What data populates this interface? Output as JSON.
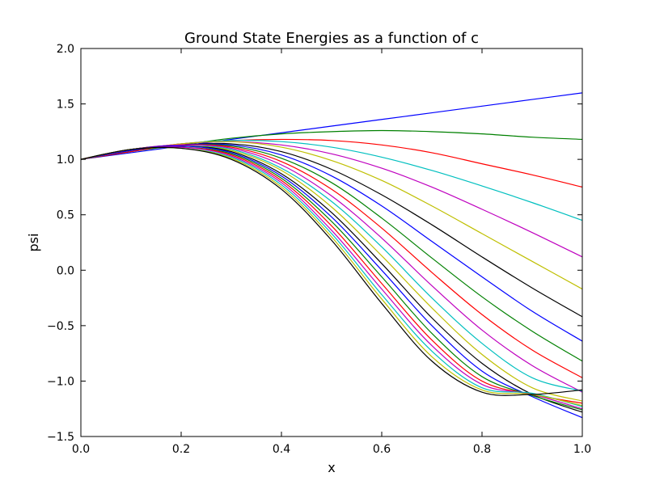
{
  "chart_data": {
    "type": "line",
    "title": "Ground State Energies as a function of c",
    "xlabel": "x",
    "ylabel": "psi",
    "xlim": [
      0.0,
      1.0
    ],
    "ylim": [
      -1.5,
      2.0
    ],
    "grid": false,
    "legend": "none",
    "x_ticks": [
      "0.0",
      "0.2",
      "0.4",
      "0.6",
      "0.8",
      "1.0"
    ],
    "y_ticks": [
      "−1.5",
      "−1.0",
      "−0.5",
      "0.0",
      "0.5",
      "1.0",
      "1.5",
      "2.0"
    ],
    "x": [
      0.0,
      0.1,
      0.2,
      0.3,
      0.4,
      0.5,
      0.6,
      0.7,
      0.8,
      0.9,
      1.0
    ],
    "series": [
      {
        "color": "#0000ff",
        "values": [
          1.0,
          1.06,
          1.12,
          1.18,
          1.24,
          1.3,
          1.36,
          1.42,
          1.48,
          1.54,
          1.6
        ]
      },
      {
        "color": "#008000",
        "values": [
          1.0,
          1.07,
          1.13,
          1.19,
          1.23,
          1.25,
          1.26,
          1.25,
          1.23,
          1.2,
          1.18
        ]
      },
      {
        "color": "#ff0000",
        "values": [
          1.0,
          1.07,
          1.14,
          1.17,
          1.18,
          1.17,
          1.13,
          1.06,
          0.96,
          0.86,
          0.75
        ]
      },
      {
        "color": "#00bfbf",
        "values": [
          1.0,
          1.08,
          1.14,
          1.17,
          1.16,
          1.11,
          1.02,
          0.9,
          0.76,
          0.61,
          0.45
        ]
      },
      {
        "color": "#bf00bf",
        "values": [
          1.0,
          1.08,
          1.14,
          1.16,
          1.13,
          1.05,
          0.92,
          0.75,
          0.55,
          0.34,
          0.12
        ]
      },
      {
        "color": "#bfbf00",
        "values": [
          1.0,
          1.08,
          1.14,
          1.16,
          1.11,
          0.99,
          0.81,
          0.58,
          0.33,
          0.08,
          -0.17
        ]
      },
      {
        "color": "#000000",
        "values": [
          1.0,
          1.08,
          1.13,
          1.14,
          1.07,
          0.91,
          0.68,
          0.41,
          0.12,
          -0.16,
          -0.42
        ]
      },
      {
        "color": "#0000ff",
        "values": [
          1.0,
          1.08,
          1.13,
          1.13,
          1.04,
          0.85,
          0.58,
          0.26,
          -0.06,
          -0.37,
          -0.64
        ]
      },
      {
        "color": "#008000",
        "values": [
          1.0,
          1.09,
          1.13,
          1.12,
          1.01,
          0.79,
          0.47,
          0.11,
          -0.24,
          -0.55,
          -0.82
        ]
      },
      {
        "color": "#ff0000",
        "values": [
          1.0,
          1.09,
          1.13,
          1.11,
          0.98,
          0.73,
          0.38,
          -0.02,
          -0.4,
          -0.72,
          -0.97
        ]
      },
      {
        "color": "#bf00bf",
        "values": [
          1.0,
          1.09,
          1.13,
          1.1,
          0.95,
          0.67,
          0.29,
          -0.14,
          -0.54,
          -0.86,
          -1.1
        ]
      },
      {
        "color": "#00bfbf",
        "values": [
          1.0,
          1.09,
          1.12,
          1.09,
          0.92,
          0.62,
          0.21,
          -0.25,
          -0.66,
          -0.97,
          -1.09
        ]
      },
      {
        "color": "#bfbf00",
        "values": [
          1.0,
          1.09,
          1.12,
          1.08,
          0.9,
          0.57,
          0.13,
          -0.34,
          -0.76,
          -1.06,
          -1.18
        ]
      },
      {
        "color": "#000000",
        "values": [
          1.0,
          1.09,
          1.12,
          1.07,
          0.87,
          0.52,
          0.06,
          -0.43,
          -0.84,
          -1.12,
          -1.28
        ]
      },
      {
        "color": "#0000ff",
        "values": [
          1.0,
          1.09,
          1.12,
          1.06,
          0.85,
          0.48,
          0.0,
          -0.5,
          -0.91,
          -1.14,
          -1.33
        ]
      },
      {
        "color": "#008000",
        "values": [
          1.0,
          1.09,
          1.11,
          1.05,
          0.83,
          0.44,
          -0.06,
          -0.57,
          -0.96,
          -1.13,
          -1.26
        ]
      },
      {
        "color": "#ff0000",
        "values": [
          1.0,
          1.09,
          1.11,
          1.04,
          0.81,
          0.4,
          -0.12,
          -0.63,
          -1.0,
          -1.12,
          -1.2
        ]
      },
      {
        "color": "#bf00bf",
        "values": [
          1.0,
          1.09,
          1.11,
          1.03,
          0.79,
          0.36,
          -0.17,
          -0.68,
          -1.03,
          -1.12,
          -1.25
        ]
      },
      {
        "color": "#00bfbf",
        "values": [
          1.0,
          1.09,
          1.1,
          1.02,
          0.77,
          0.33,
          -0.22,
          -0.73,
          -1.06,
          -1.11,
          -1.23
        ]
      },
      {
        "color": "#bfbf00",
        "values": [
          1.0,
          1.09,
          1.1,
          1.01,
          0.75,
          0.3,
          -0.26,
          -0.78,
          -1.08,
          -1.12,
          -1.22
        ]
      },
      {
        "color": "#000000",
        "values": [
          1.0,
          1.09,
          1.1,
          1.0,
          0.73,
          0.27,
          -0.3,
          -0.82,
          -1.1,
          -1.12,
          -1.08
        ]
      }
    ]
  }
}
